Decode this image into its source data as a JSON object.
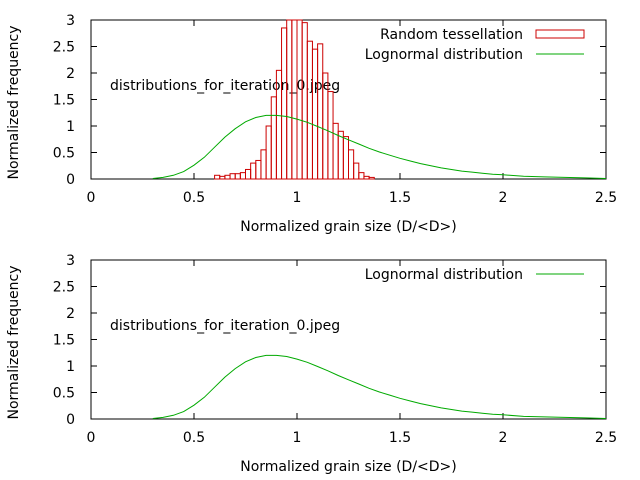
{
  "chart_data": [
    {
      "type": "bar",
      "title": "",
      "annotation": "distributions_for_iteration_0.jpeg",
      "xlabel": "Normalized grain size (D/<D>)",
      "ylabel": "Normalized frequency",
      "xlim": [
        0,
        2.5
      ],
      "ylim": [
        0,
        3
      ],
      "xticks": [
        "0",
        "0.5",
        "1",
        "1.5",
        "2",
        "2.5"
      ],
      "yticks": [
        "0",
        "0.5",
        "1",
        "1.5",
        "2",
        "2.5",
        "3"
      ],
      "grid": false,
      "legend": "top-right",
      "series": [
        {
          "name": "Random tessellation",
          "style": "histogram",
          "color": "#cc0000",
          "bin_width": 0.025,
          "bins": [
            {
              "x": 0.6,
              "y": 0.07
            },
            {
              "x": 0.625,
              "y": 0.05
            },
            {
              "x": 0.65,
              "y": 0.07
            },
            {
              "x": 0.675,
              "y": 0.1
            },
            {
              "x": 0.7,
              "y": 0.1
            },
            {
              "x": 0.725,
              "y": 0.12
            },
            {
              "x": 0.75,
              "y": 0.18
            },
            {
              "x": 0.775,
              "y": 0.3
            },
            {
              "x": 0.8,
              "y": 0.35
            },
            {
              "x": 0.825,
              "y": 0.55
            },
            {
              "x": 0.85,
              "y": 1.0
            },
            {
              "x": 0.875,
              "y": 1.55
            },
            {
              "x": 0.9,
              "y": 2.05
            },
            {
              "x": 0.925,
              "y": 2.85
            },
            {
              "x": 0.95,
              "y": 3.0
            },
            {
              "x": 0.975,
              "y": 3.0
            },
            {
              "x": 1.0,
              "y": 3.0
            },
            {
              "x": 1.025,
              "y": 2.95
            },
            {
              "x": 1.05,
              "y": 2.6
            },
            {
              "x": 1.075,
              "y": 2.45
            },
            {
              "x": 1.1,
              "y": 2.55
            },
            {
              "x": 1.125,
              "y": 2.0
            },
            {
              "x": 1.15,
              "y": 1.65
            },
            {
              "x": 1.175,
              "y": 1.05
            },
            {
              "x": 1.2,
              "y": 0.9
            },
            {
              "x": 1.225,
              "y": 0.8
            },
            {
              "x": 1.25,
              "y": 0.55
            },
            {
              "x": 1.275,
              "y": 0.3
            },
            {
              "x": 1.3,
              "y": 0.12
            },
            {
              "x": 1.325,
              "y": 0.05
            },
            {
              "x": 1.35,
              "y": 0.03
            }
          ]
        },
        {
          "name": "Lognormal distribution",
          "style": "line",
          "color": "#00aa00",
          "x": [
            0.3,
            0.35,
            0.4,
            0.45,
            0.5,
            0.55,
            0.6,
            0.65,
            0.7,
            0.75,
            0.8,
            0.85,
            0.9,
            0.95,
            1.0,
            1.05,
            1.1,
            1.15,
            1.2,
            1.25,
            1.3,
            1.35,
            1.4,
            1.45,
            1.5,
            1.55,
            1.6,
            1.65,
            1.7,
            1.75,
            1.8,
            1.85,
            1.9,
            1.95,
            2.0,
            2.1,
            2.2,
            2.3,
            2.4,
            2.5
          ],
          "y": [
            0.01,
            0.03,
            0.07,
            0.14,
            0.26,
            0.41,
            0.6,
            0.79,
            0.95,
            1.08,
            1.16,
            1.2,
            1.2,
            1.18,
            1.13,
            1.07,
            0.99,
            0.91,
            0.82,
            0.74,
            0.66,
            0.58,
            0.51,
            0.45,
            0.39,
            0.34,
            0.29,
            0.25,
            0.21,
            0.18,
            0.15,
            0.13,
            0.11,
            0.09,
            0.08,
            0.05,
            0.04,
            0.03,
            0.02,
            0.01
          ]
        }
      ]
    },
    {
      "type": "line",
      "title": "",
      "annotation": "distributions_for_iteration_0.jpeg",
      "xlabel": "Normalized grain size (D/<D>)",
      "ylabel": "Normalized frequency",
      "xlim": [
        0,
        2.5
      ],
      "ylim": [
        0,
        3
      ],
      "xticks": [
        "0",
        "0.5",
        "1",
        "1.5",
        "2",
        "2.5"
      ],
      "yticks": [
        "0",
        "0.5",
        "1",
        "1.5",
        "2",
        "2.5",
        "3"
      ],
      "grid": false,
      "legend": "top-right",
      "series": [
        {
          "name": "Lognormal distribution",
          "style": "line",
          "color": "#00aa00",
          "x": [
            0.3,
            0.35,
            0.4,
            0.45,
            0.5,
            0.55,
            0.6,
            0.65,
            0.7,
            0.75,
            0.8,
            0.85,
            0.9,
            0.95,
            1.0,
            1.05,
            1.1,
            1.15,
            1.2,
            1.25,
            1.3,
            1.35,
            1.4,
            1.45,
            1.5,
            1.55,
            1.6,
            1.65,
            1.7,
            1.75,
            1.8,
            1.85,
            1.9,
            1.95,
            2.0,
            2.1,
            2.2,
            2.3,
            2.4,
            2.5
          ],
          "y": [
            0.01,
            0.03,
            0.07,
            0.14,
            0.26,
            0.41,
            0.6,
            0.79,
            0.95,
            1.08,
            1.16,
            1.2,
            1.2,
            1.18,
            1.13,
            1.07,
            0.99,
            0.91,
            0.82,
            0.74,
            0.66,
            0.58,
            0.51,
            0.45,
            0.39,
            0.34,
            0.29,
            0.25,
            0.21,
            0.18,
            0.15,
            0.13,
            0.11,
            0.09,
            0.08,
            0.05,
            0.04,
            0.03,
            0.02,
            0.01
          ]
        }
      ]
    }
  ]
}
